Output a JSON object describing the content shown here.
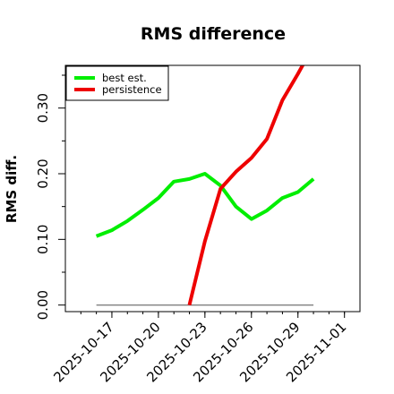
{
  "chart_data": {
    "type": "line",
    "title": "RMS difference",
    "xlabel": "",
    "ylabel": "RMS diff.",
    "x": [
      "2025-10-16",
      "2025-10-17",
      "2025-10-18",
      "2025-10-19",
      "2025-10-20",
      "2025-10-21",
      "2025-10-22",
      "2025-10-23",
      "2025-10-24",
      "2025-10-25",
      "2025-10-26",
      "2025-10-27",
      "2025-10-28",
      "2025-10-29",
      "2025-10-30"
    ],
    "xlim": [
      "2025-10-14",
      "2025-11-02"
    ],
    "xticks": [
      "2025-10-17",
      "2025-10-20",
      "2025-10-23",
      "2025-10-26",
      "2025-10-29",
      "2025-11-01"
    ],
    "ylim": [
      -0.01,
      0.365
    ],
    "yticks": [
      0.0,
      0.1,
      0.2,
      0.3
    ],
    "ytick_labels": [
      "0.00",
      "0.10",
      "0.20",
      "0.30"
    ],
    "yminor_step": 0.05,
    "legend_position": "top-left",
    "series": [
      {
        "name": "best est.",
        "color": "#00ee00",
        "points": [
          [
            "2025-10-16",
            0.105
          ],
          [
            "2025-10-17",
            0.114
          ],
          [
            "2025-10-18",
            0.128
          ],
          [
            "2025-10-19",
            0.145
          ],
          [
            "2025-10-20",
            0.163
          ],
          [
            "2025-10-21",
            0.188
          ],
          [
            "2025-10-22",
            0.192
          ],
          [
            "2025-10-23",
            0.2
          ],
          [
            "2025-10-24",
            0.182
          ],
          [
            "2025-10-25",
            0.15
          ],
          [
            "2025-10-26",
            0.131
          ],
          [
            "2025-10-27",
            0.144
          ],
          [
            "2025-10-28",
            0.163
          ],
          [
            "2025-10-29",
            0.172
          ],
          [
            "2025-10-30",
            0.192
          ]
        ]
      },
      {
        "name": "persistence",
        "color": "#ee0000",
        "points": [
          [
            "2025-10-22",
            0.0
          ],
          [
            "2025-10-23",
            0.097
          ],
          [
            "2025-10-24",
            0.177
          ],
          [
            "2025-10-25",
            0.203
          ],
          [
            "2025-10-26",
            0.224
          ],
          [
            "2025-10-27",
            0.253
          ],
          [
            "2025-10-28",
            0.312
          ],
          [
            "2025-10-29",
            0.352
          ],
          [
            "2025-10-30",
            0.395
          ]
        ]
      }
    ],
    "baseline": {
      "y": 0.0,
      "from": "2025-10-16",
      "to": "2025-10-30",
      "color": "#808080"
    }
  }
}
